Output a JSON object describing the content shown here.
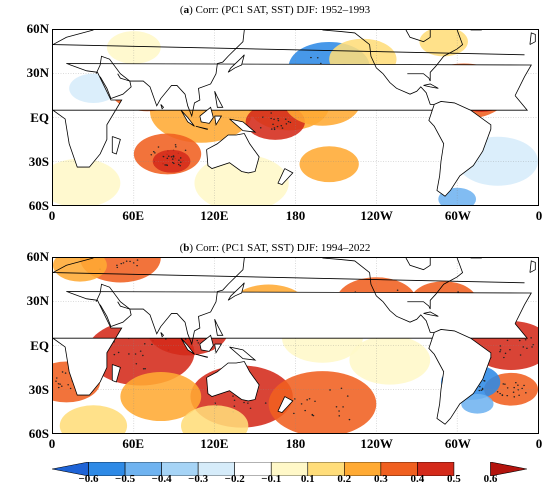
{
  "panels": [
    {
      "id": "a",
      "letter": "a",
      "title": "Corr: (PC1 SAT, SST) DJF: 1952–1993",
      "lat_labels": [
        "60N",
        "30N",
        "EQ",
        "30S",
        "60S"
      ],
      "lon_labels": [
        "0",
        "60E",
        "120E",
        "180",
        "120W",
        "60W",
        "0"
      ],
      "anomalies": [
        {
          "lon": 110,
          "lat": 4,
          "r": 38,
          "value": 0.3
        },
        {
          "lon": 70,
          "lat": 20,
          "r": 28,
          "value": 0.4
        },
        {
          "lon": 80,
          "lat": 22,
          "r": 16,
          "value": 0.5
        },
        {
          "lon": 175,
          "lat": 8,
          "r": 30,
          "value": 0.3
        },
        {
          "lon": 165,
          "lat": -3,
          "r": 22,
          "value": 0.5
        },
        {
          "lon": 85,
          "lat": -25,
          "r": 25,
          "value": 0.4
        },
        {
          "lon": 88,
          "lat": -30,
          "r": 14,
          "value": 0.5
        },
        {
          "lon": 305,
          "lat": 18,
          "r": 34,
          "value": 0.4
        },
        {
          "lon": 318,
          "lat": 15,
          "r": 20,
          "value": 0.5
        },
        {
          "lon": 285,
          "lat": 26,
          "r": 12,
          "value": -0.4
        },
        {
          "lon": 205,
          "lat": 35,
          "r": 30,
          "value": -0.4
        },
        {
          "lon": 200,
          "lat": 10,
          "r": 28,
          "value": 0.3
        },
        {
          "lon": 230,
          "lat": 40,
          "r": 25,
          "value": 0.2
        },
        {
          "lon": 290,
          "lat": 52,
          "r": 18,
          "value": 0.2
        },
        {
          "lon": 205,
          "lat": -32,
          "r": 22,
          "value": 0.3
        },
        {
          "lon": 300,
          "lat": -56,
          "r": 14,
          "value": -0.3
        },
        {
          "lon": 20,
          "lat": -45,
          "r": 30,
          "value": 0.15
        },
        {
          "lon": 140,
          "lat": -45,
          "r": 35,
          "value": 0.15
        },
        {
          "lon": 60,
          "lat": 48,
          "r": 20,
          "value": 0.15
        },
        {
          "lon": 30,
          "lat": 20,
          "r": 18,
          "value": -0.15
        },
        {
          "lon": 330,
          "lat": -30,
          "r": 30,
          "value": -0.15
        }
      ]
    },
    {
      "id": "b",
      "letter": "b",
      "title": "Corr: (PC1 SAT, SST) DJF: 1994–2022",
      "lat_labels": [
        "60N",
        "30N",
        "EQ",
        "30S",
        "60S"
      ],
      "lon_labels": [
        "0",
        "60E",
        "120E",
        "180",
        "120W",
        "60W",
        "0"
      ],
      "anomalies": [
        {
          "lon": 65,
          "lat": -5,
          "r": 40,
          "value": 0.5
        },
        {
          "lon": 100,
          "lat": 10,
          "r": 30,
          "value": 0.5
        },
        {
          "lon": 140,
          "lat": -35,
          "r": 38,
          "value": 0.5
        },
        {
          "lon": 200,
          "lat": -40,
          "r": 40,
          "value": 0.4
        },
        {
          "lon": 80,
          "lat": -35,
          "r": 30,
          "value": 0.3
        },
        {
          "lon": 160,
          "lat": 25,
          "r": 30,
          "value": 0.3
        },
        {
          "lon": 240,
          "lat": 30,
          "r": 30,
          "value": 0.4
        },
        {
          "lon": 290,
          "lat": 30,
          "r": 25,
          "value": 0.4
        },
        {
          "lon": 340,
          "lat": 0,
          "r": 30,
          "value": 0.5
        },
        {
          "lon": 340,
          "lat": -30,
          "r": 20,
          "value": 0.4
        },
        {
          "lon": 10,
          "lat": -25,
          "r": 25,
          "value": 0.4
        },
        {
          "lon": 310,
          "lat": -25,
          "r": 22,
          "value": -0.4
        },
        {
          "lon": 315,
          "lat": -40,
          "r": 12,
          "value": -0.3
        },
        {
          "lon": 50,
          "lat": 60,
          "r": 30,
          "value": 0.4
        },
        {
          "lon": 20,
          "lat": 55,
          "r": 20,
          "value": 0.3
        },
        {
          "lon": 200,
          "lat": 5,
          "r": 30,
          "value": 0.15
        },
        {
          "lon": 250,
          "lat": -10,
          "r": 30,
          "value": 0.15
        },
        {
          "lon": 120,
          "lat": -55,
          "r": 25,
          "value": 0.2
        },
        {
          "lon": 30,
          "lat": -55,
          "r": 25,
          "value": 0.2
        }
      ]
    }
  ],
  "colorbar": {
    "ticks": [
      "−0.6",
      "−0.5",
      "−0.4",
      "−0.3",
      "−0.2",
      "−0.1",
      "0.1",
      "0.2",
      "0.3",
      "0.4",
      "0.5",
      "0.6"
    ],
    "colors": [
      "#1e63d6",
      "#2e8ae6",
      "#6fb3f0",
      "#a6d4f6",
      "#d6ecfa",
      "#ffffff",
      "#fff8c8",
      "#ffdd7a",
      "#ffaa33",
      "#f06020",
      "#d42a1a",
      "#b3140e"
    ]
  },
  "map": {
    "land_outline_color": "#000000",
    "grid_color": "#888888",
    "land_fill": "#ffffff"
  }
}
